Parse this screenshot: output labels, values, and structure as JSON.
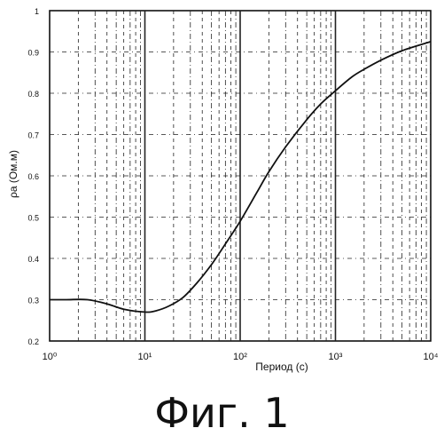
{
  "chart_data": {
    "type": "line",
    "xlabel": "Период (с)",
    "ylabel": "ρa (Ом.м)",
    "x_scale": "log",
    "xlim": [
      1,
      10000
    ],
    "x_ticks": [
      "10⁰",
      "10¹",
      "10²",
      "10³",
      "10⁴"
    ],
    "y_ticks": [
      "1",
      "0.9",
      "0.8",
      "0.7",
      "0.6",
      "0.5",
      "0.4",
      "0.3",
      "0.2"
    ],
    "ylim": [
      0.2,
      1.0
    ],
    "grid": true,
    "series": [
      {
        "x": [
          1,
          1.5,
          2.5,
          4,
          6,
          10,
          13,
          18,
          25,
          35,
          50,
          70,
          100,
          150,
          200,
          300,
          500,
          700,
          1000,
          1500,
          2000,
          3000,
          5000,
          10000
        ],
        "y": [
          0.3,
          0.3,
          0.3,
          0.29,
          0.277,
          0.27,
          0.273,
          0.285,
          0.305,
          0.34,
          0.385,
          0.435,
          0.49,
          0.56,
          0.61,
          0.67,
          0.736,
          0.774,
          0.806,
          0.84,
          0.858,
          0.88,
          0.903,
          0.925
        ]
      }
    ]
  },
  "caption": "Фиг. 1"
}
